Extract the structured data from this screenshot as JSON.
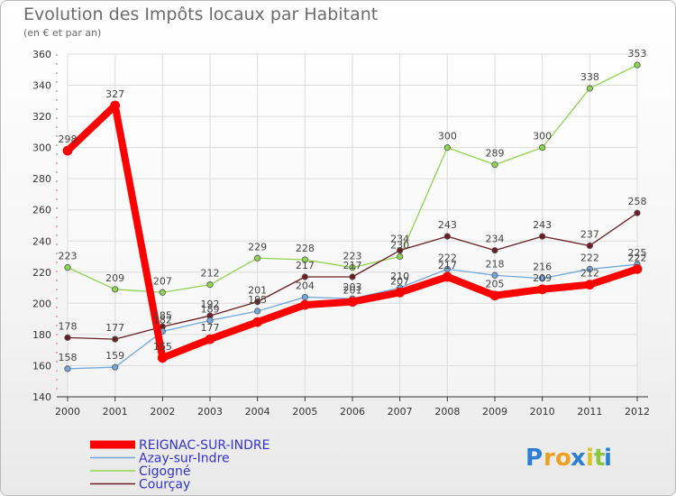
{
  "chart_data": {
    "type": "line",
    "title": "Evolution des Impôts locaux par Habitant",
    "subtitle": "(en € et par an)",
    "xlabel": "",
    "ylabel": "",
    "x": [
      "2000",
      "2001",
      "2002",
      "2003",
      "2004",
      "2005",
      "2006",
      "2007",
      "2008",
      "2009",
      "2010",
      "2011",
      "2012"
    ],
    "ylim": [
      140,
      360
    ],
    "yticks": [
      140,
      160,
      180,
      200,
      220,
      240,
      260,
      280,
      300,
      320,
      340,
      360
    ],
    "grid": true,
    "legend_position": "bottom-left",
    "series": [
      {
        "name": "REIGNAC-SUR-INDRE",
        "color": "#ff0000",
        "values": [
          298,
          327,
          165,
          177,
          188,
          199,
          201,
          207,
          217,
          205,
          209,
          212,
          222
        ],
        "labels": [
          "298",
          "327",
          "165",
          "177",
          "188",
          "199",
          "201",
          "207",
          "217",
          "205",
          "209",
          "212",
          "222"
        ],
        "label_shown": [
          true,
          true,
          true,
          true,
          false,
          false,
          true,
          true,
          true,
          true,
          true,
          true,
          true
        ]
      },
      {
        "name": "Azay-sur-Indre",
        "color": "#6fa8dc",
        "values": [
          158,
          159,
          182,
          189,
          195,
          204,
          203,
          210,
          222,
          218,
          216,
          222,
          225
        ],
        "labels": [
          "158",
          "159",
          "182",
          "189",
          "195",
          "204",
          "203",
          "210",
          "222",
          "218",
          "216",
          "222",
          "225"
        ],
        "label_shown": [
          true,
          true,
          true,
          true,
          true,
          true,
          true,
          true,
          true,
          true,
          true,
          true,
          true
        ]
      },
      {
        "name": "Cigogné",
        "color": "#8fd44f",
        "values": [
          223,
          209,
          207,
          212,
          229,
          228,
          223,
          230,
          300,
          289,
          300,
          338,
          353
        ],
        "labels": [
          "223",
          "209",
          "207",
          "212",
          "229",
          "228",
          "223",
          "230",
          "300",
          "289",
          "300",
          "338",
          "353"
        ],
        "label_shown": [
          true,
          true,
          true,
          true,
          true,
          true,
          true,
          true,
          true,
          true,
          true,
          true,
          true
        ]
      },
      {
        "name": "Courçay",
        "color": "#6b1f24",
        "values": [
          178,
          177,
          185,
          192,
          201,
          217,
          217,
          234,
          243,
          234,
          243,
          237,
          258
        ],
        "labels": [
          "178",
          "177",
          "185",
          "192",
          "201",
          "217",
          "217",
          "234",
          "243",
          "234",
          "243",
          "237",
          "258"
        ],
        "label_shown": [
          true,
          true,
          true,
          true,
          true,
          true,
          true,
          true,
          true,
          true,
          true,
          true,
          true
        ]
      }
    ]
  },
  "legend": {
    "items": [
      {
        "label": "REIGNAC-SUR-INDRE",
        "color": "#ff0000"
      },
      {
        "label": "Azay-sur-Indre",
        "color": "#6fa8dc"
      },
      {
        "label": "Cigogné",
        "color": "#8fd44f"
      },
      {
        "label": "Courçay",
        "color": "#6b1f24"
      }
    ],
    "text_color": "#3333cc"
  },
  "logo": {
    "text": "Proxiti",
    "letters": [
      "P",
      "r",
      "o",
      "x",
      "i",
      "t",
      "i"
    ],
    "letter_colors": [
      "#2a7fd4",
      "#f0a020",
      "#f0a020",
      "#2a7fd4",
      "#e0c020",
      "#8cc63f",
      "#2a7fd4"
    ]
  }
}
